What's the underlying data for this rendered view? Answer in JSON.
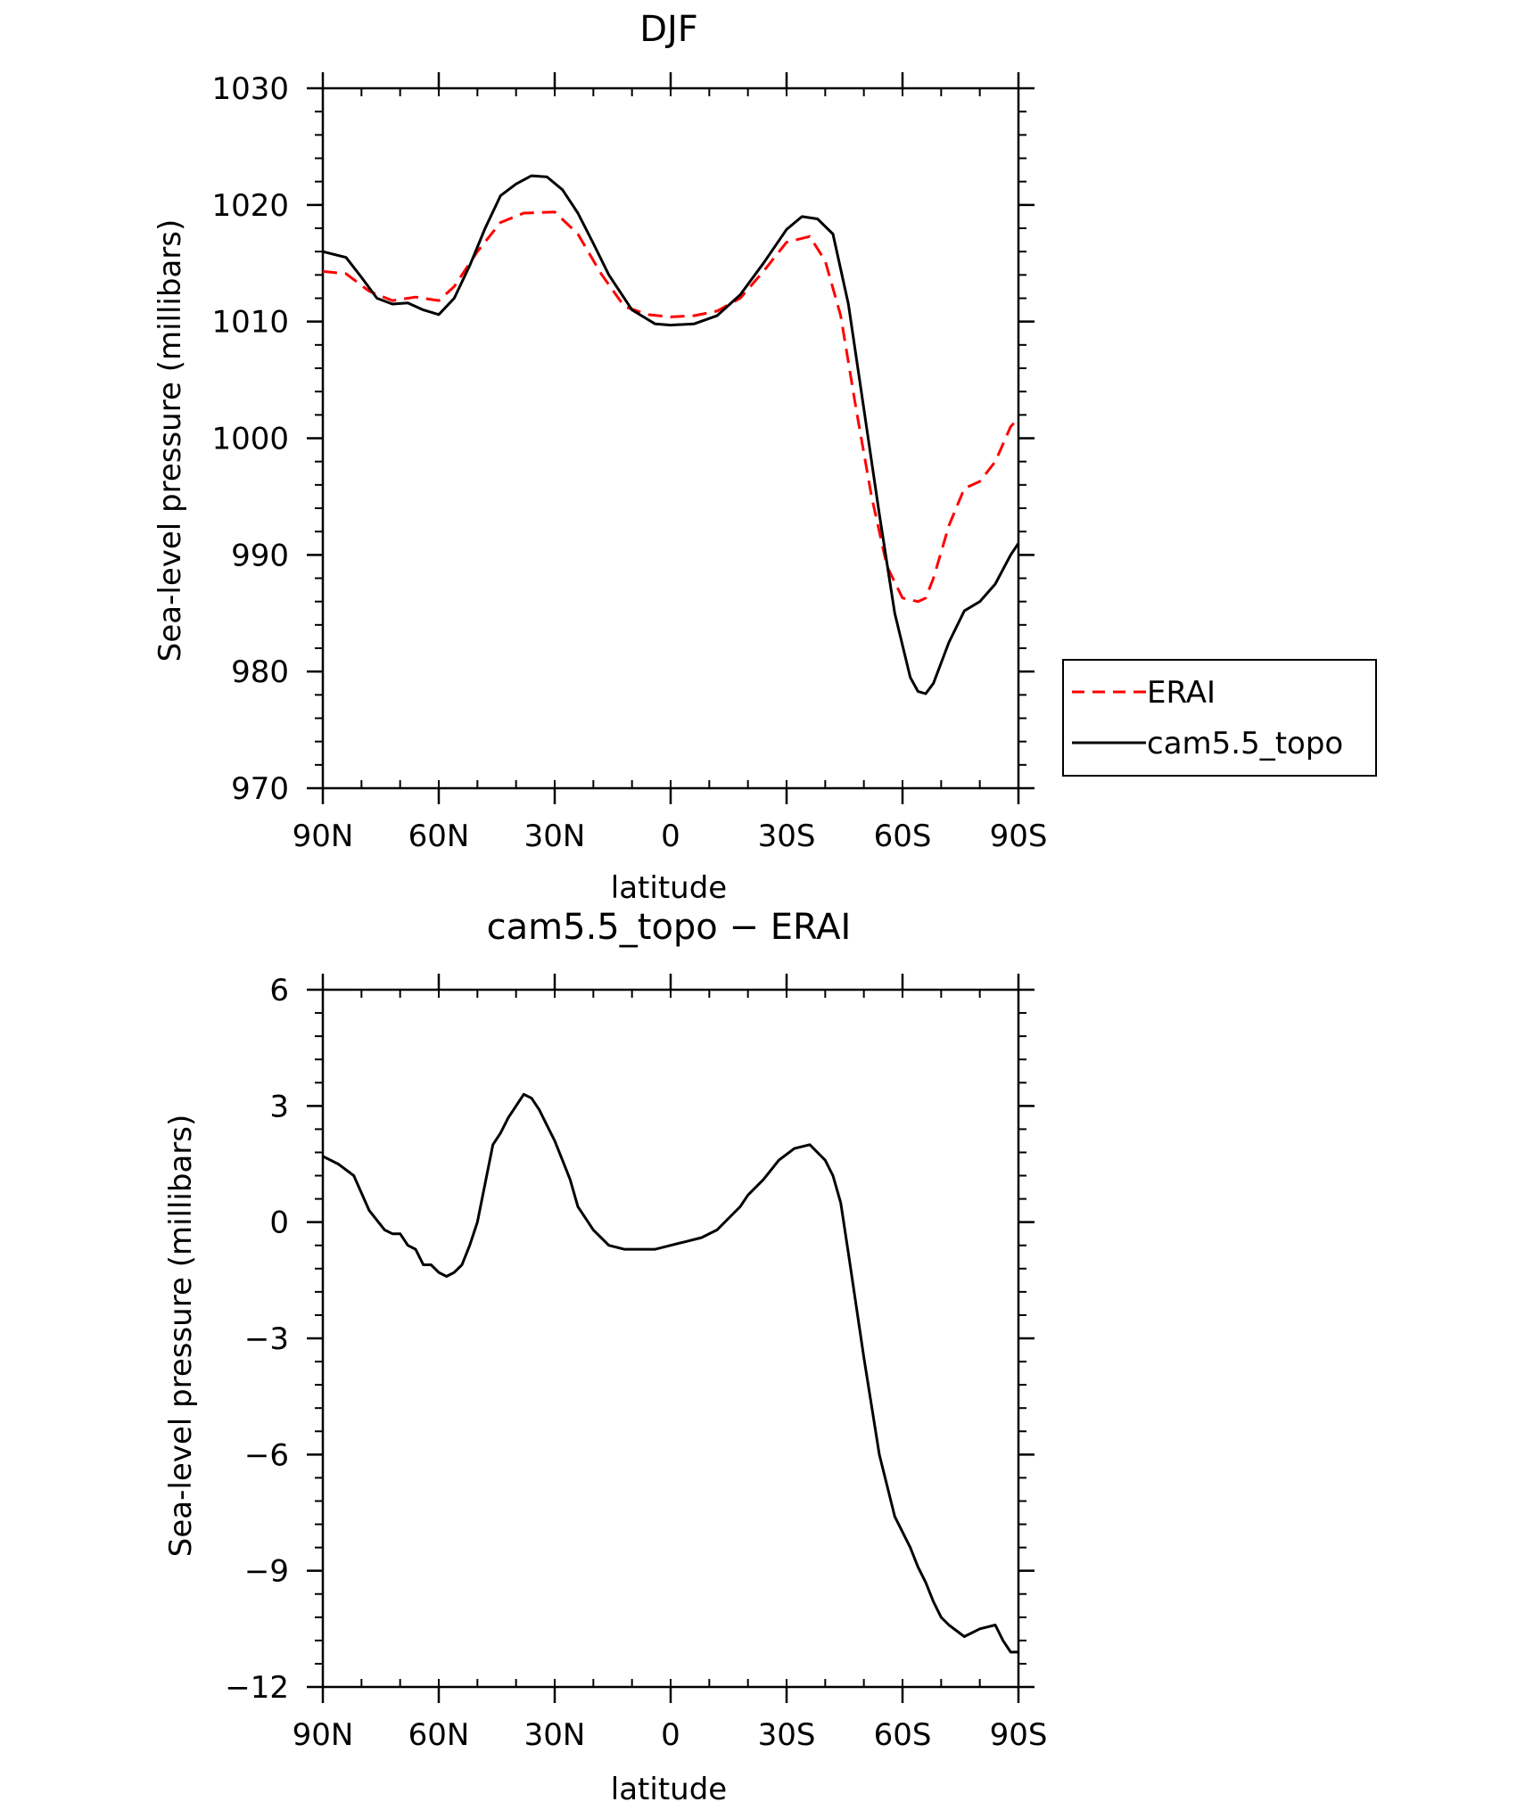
{
  "chart_data": [
    {
      "type": "line",
      "title": "DJF",
      "xlabel": "latitude",
      "ylabel": "Sea-level pressure (millibars)",
      "xlim": [
        90,
        -90
      ],
      "ylim": [
        970,
        1030
      ],
      "xticks": [
        90,
        60,
        30,
        0,
        -30,
        -60,
        -90
      ],
      "xtick_labels": [
        "90N",
        "60N",
        "30N",
        "0",
        "30S",
        "60S",
        "90S"
      ],
      "yticks": [
        970,
        980,
        990,
        1000,
        1010,
        1020,
        1030
      ],
      "ytick_labels": [
        "970",
        "980",
        "990",
        "1000",
        "1010",
        "1020",
        "1030"
      ],
      "legend_position": "right",
      "series": [
        {
          "name": "ERAI",
          "color": "#ff0000",
          "dash": "dashed",
          "x": [
            90,
            84,
            78,
            72,
            66,
            60,
            56,
            50,
            44,
            38,
            30,
            24,
            18,
            12,
            6,
            0,
            -6,
            -12,
            -18,
            -24,
            -30,
            -36,
            -40,
            -44,
            -48,
            -52,
            -56,
            -60,
            -64,
            -66,
            -68,
            -72,
            -76,
            -80,
            -84,
            -88,
            -90
          ],
          "y": [
            1014.3,
            1014.1,
            1012.6,
            1011.8,
            1012.1,
            1011.8,
            1013.0,
            1016.0,
            1018.5,
            1019.3,
            1019.4,
            1017.5,
            1014.1,
            1011.3,
            1010.6,
            1010.4,
            1010.5,
            1010.9,
            1012.0,
            1014.3,
            1016.8,
            1017.3,
            1015.2,
            1010.5,
            1002.5,
            995.0,
            989.0,
            986.3,
            986.0,
            986.3,
            988.0,
            992.5,
            995.7,
            996.3,
            998.0,
            1001.0,
            1001.7
          ]
        },
        {
          "name": "cam5.5_topo",
          "color": "#000000",
          "dash": "solid",
          "x": [
            90,
            84,
            80,
            76,
            72,
            68,
            64,
            60,
            56,
            52,
            48,
            44,
            40,
            36,
            32,
            28,
            24,
            20,
            16,
            10,
            4,
            0,
            -6,
            -12,
            -18,
            -24,
            -30,
            -34,
            -38,
            -42,
            -46,
            -50,
            -54,
            -58,
            -62,
            -64,
            -66,
            -68,
            -72,
            -76,
            -80,
            -84,
            -88,
            -90
          ],
          "y": [
            1016.0,
            1015.5,
            1013.8,
            1012.0,
            1011.5,
            1011.6,
            1011.0,
            1010.6,
            1012.0,
            1014.8,
            1018.0,
            1020.8,
            1021.8,
            1022.5,
            1022.4,
            1021.3,
            1019.3,
            1016.7,
            1014.0,
            1011.0,
            1009.8,
            1009.7,
            1009.8,
            1010.5,
            1012.3,
            1015.0,
            1017.9,
            1019.0,
            1018.8,
            1017.5,
            1011.5,
            1002.5,
            993.5,
            985.0,
            979.5,
            978.3,
            978.1,
            979.0,
            982.5,
            985.2,
            986.0,
            987.5,
            990.0,
            991.0
          ]
        }
      ]
    },
    {
      "type": "line",
      "title": "cam5.5_topo − ERAI",
      "xlabel": "latitude",
      "ylabel": "Sea-level pressure (millibars)",
      "xlim": [
        90,
        -90
      ],
      "ylim": [
        -12,
        6
      ],
      "xticks": [
        90,
        60,
        30,
        0,
        -30,
        -60,
        -90
      ],
      "xtick_labels": [
        "90N",
        "60N",
        "30N",
        "0",
        "30S",
        "60S",
        "90S"
      ],
      "yticks": [
        6,
        3,
        0,
        -3,
        -6,
        -9,
        -12
      ],
      "ytick_labels": [
        "6",
        "3",
        "0",
        "−3",
        "−6",
        "−9",
        "−12"
      ],
      "series": [
        {
          "color": "#000000",
          "dash": "solid",
          "x": [
            90,
            86,
            82,
            78,
            74,
            72,
            70,
            68,
            66,
            64,
            62,
            60,
            58,
            56,
            54,
            52,
            50,
            48,
            46,
            44,
            42,
            40,
            38,
            36,
            34,
            32,
            30,
            28,
            26,
            24,
            20,
            16,
            12,
            10,
            8,
            4,
            0,
            -4,
            -8,
            -12,
            -16,
            -18,
            -20,
            -24,
            -28,
            -32,
            -36,
            -40,
            -42,
            -44,
            -46,
            -50,
            -54,
            -58,
            -60,
            -62,
            -64,
            -66,
            -68,
            -70,
            -72,
            -76,
            -80,
            -84,
            -86,
            -88,
            -90
          ],
          "y": [
            1.7,
            1.5,
            1.2,
            0.3,
            -0.2,
            -0.3,
            -0.3,
            -0.6,
            -0.7,
            -1.1,
            -1.1,
            -1.3,
            -1.4,
            -1.3,
            -1.1,
            -0.6,
            0.0,
            1.0,
            2.0,
            2.3,
            2.7,
            3.0,
            3.3,
            3.2,
            2.9,
            2.5,
            2.1,
            1.6,
            1.1,
            0.4,
            -0.2,
            -0.6,
            -0.7,
            -0.7,
            -0.7,
            -0.7,
            -0.6,
            -0.5,
            -0.4,
            -0.2,
            0.2,
            0.4,
            0.7,
            1.1,
            1.6,
            1.9,
            2.0,
            1.6,
            1.2,
            0.5,
            -0.8,
            -3.5,
            -6.0,
            -7.6,
            -8.0,
            -8.4,
            -8.9,
            -9.3,
            -9.8,
            -10.2,
            -10.4,
            -10.7,
            -10.5,
            -10.4,
            -10.8,
            -11.1,
            -11.1
          ]
        }
      ]
    }
  ]
}
